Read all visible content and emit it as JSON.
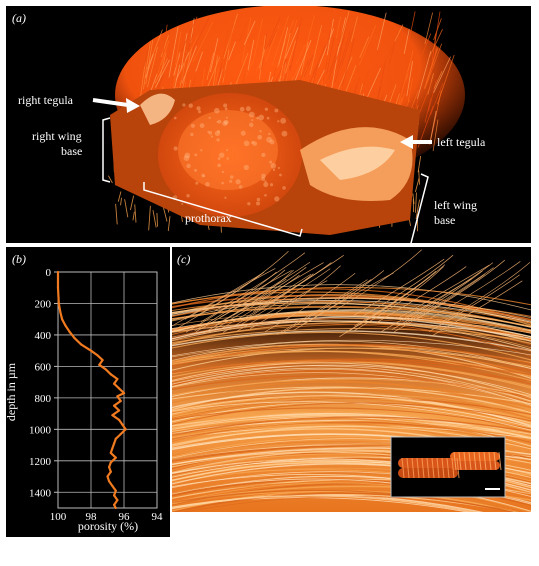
{
  "panels": {
    "a": {
      "tag": "(a)",
      "labels": {
        "right_tegula": "right tegula",
        "right_wing_base_line1": "right wing",
        "right_wing_base_line2": "base",
        "left_tegula": "left tegula",
        "prothorax": "prothorax",
        "left_wing_base_line1": "left wing",
        "left_wing_base_line2": "base"
      }
    },
    "b": {
      "tag": "(b)"
    },
    "c": {
      "tag": "(c)"
    }
  },
  "colors": {
    "background": "#000000",
    "orange": "#ff7a1a",
    "deep_orange": "#e8420a",
    "pale_orange": "#ffd29a",
    "curve": "#f07a1f",
    "annotation": "#ffffff"
  },
  "chart_data": {
    "type": "line",
    "xlabel": "porosity (%)",
    "ylabel": "depth in µm",
    "xlim": [
      100,
      94
    ],
    "ylim": [
      1500,
      0
    ],
    "x_ticks": [
      "100",
      "98",
      "96",
      "94"
    ],
    "y_ticks": [
      "0",
      "200",
      "400",
      "600",
      "800",
      "1000",
      "1200",
      "1400"
    ],
    "x_reversed": true,
    "grid": true,
    "series": [
      {
        "points": [
          [
            100.0,
            0
          ],
          [
            100.0,
            100
          ],
          [
            99.95,
            200
          ],
          [
            99.85,
            260
          ],
          [
            99.75,
            300
          ],
          [
            99.55,
            340
          ],
          [
            99.3,
            380
          ],
          [
            99.0,
            420
          ],
          [
            98.6,
            460
          ],
          [
            98.0,
            500
          ],
          [
            97.6,
            530
          ],
          [
            97.3,
            560
          ],
          [
            97.5,
            590
          ],
          [
            97.1,
            620
          ],
          [
            96.8,
            650
          ],
          [
            96.4,
            680
          ],
          [
            96.6,
            710
          ],
          [
            96.3,
            740
          ],
          [
            96.0,
            770
          ],
          [
            96.4,
            790
          ],
          [
            96.2,
            820
          ],
          [
            96.6,
            850
          ],
          [
            96.3,
            880
          ],
          [
            96.7,
            910
          ],
          [
            96.3,
            940
          ],
          [
            96.1,
            970
          ],
          [
            95.9,
            1000
          ],
          [
            96.2,
            1030
          ],
          [
            96.5,
            1060
          ],
          [
            96.6,
            1090
          ],
          [
            96.7,
            1120
          ],
          [
            96.8,
            1150
          ],
          [
            96.5,
            1180
          ],
          [
            96.8,
            1210
          ],
          [
            96.9,
            1240
          ],
          [
            96.8,
            1270
          ],
          [
            97.0,
            1300
          ],
          [
            96.9,
            1330
          ],
          [
            96.7,
            1360
          ],
          [
            96.5,
            1390
          ],
          [
            96.6,
            1420
          ],
          [
            96.4,
            1450
          ],
          [
            96.6,
            1480
          ],
          [
            96.5,
            1500
          ]
        ]
      }
    ]
  }
}
